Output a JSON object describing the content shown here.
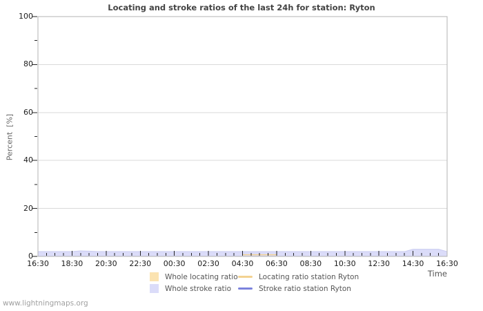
{
  "watermark": "www.lightningmaps.org",
  "chart_data": {
    "type": "area",
    "title": "Locating and stroke ratios of the last 24h for station: Ryton",
    "xlabel": "Time",
    "ylabel": "Percent  [%]",
    "ylim": [
      0,
      100
    ],
    "y_major_ticks": [
      0,
      20,
      40,
      60,
      80,
      100
    ],
    "y_tick_labels": [
      "0",
      "20",
      "40",
      "60",
      "80",
      "100"
    ],
    "y_minor_step": 10,
    "grid": "horizontal-major-only",
    "legend_position": "bottom",
    "x_start": "16:30",
    "x_step_minutes": 30,
    "x_points": 49,
    "x_major_labels": [
      "16:30",
      "18:30",
      "20:30",
      "22:30",
      "00:30",
      "02:30",
      "04:30",
      "06:30",
      "08:30",
      "10:30",
      "12:30",
      "14:30",
      "16:30"
    ],
    "x_minor_ticks_per_major": 4,
    "colors": {
      "axis_border": "#b3b3b3",
      "gridline": "#d9d9d9",
      "tick": "#222222",
      "background": "#ffffff"
    },
    "series": [
      {
        "name": "Whole locating ratio",
        "type": "area",
        "color": "#fbe3b1",
        "edge_color": "#f0d49a",
        "values": [
          0,
          0,
          0,
          0,
          0,
          0,
          0,
          0,
          0,
          0,
          0,
          0,
          0,
          0,
          0,
          0,
          0,
          0,
          0,
          0,
          0,
          0,
          0,
          0,
          0,
          0,
          0,
          0,
          0,
          0,
          0,
          0,
          0,
          0,
          0,
          0,
          0,
          0,
          0,
          0,
          0,
          0,
          0,
          0,
          0,
          0,
          0,
          0,
          0
        ]
      },
      {
        "name": "Whole stroke ratio",
        "type": "area",
        "color": "#dbdcf9",
        "edge_color": "#c9cbf0",
        "values": [
          2,
          2,
          2,
          2,
          2,
          2.3,
          2.2,
          2,
          2,
          2,
          2,
          2,
          2,
          2,
          2,
          2,
          2,
          2,
          2,
          2,
          2,
          2,
          2,
          2,
          2,
          2,
          2,
          2,
          2,
          2,
          2,
          2,
          2,
          2,
          2,
          2,
          2,
          2,
          2,
          2,
          2,
          2,
          2,
          2,
          3,
          3,
          3,
          3,
          2
        ]
      },
      {
        "name": "Locating ratio station Ryton",
        "type": "line",
        "color": "#f3d291",
        "values": [
          0,
          0,
          0,
          0,
          0,
          0,
          0,
          0,
          0,
          0,
          0,
          0,
          0,
          0,
          0,
          0,
          0,
          0,
          0,
          0,
          0,
          0,
          0,
          0,
          0.7,
          0.7,
          0.7,
          0.7,
          0.7,
          0,
          0,
          0,
          0,
          0,
          0,
          0,
          0,
          0,
          0,
          0,
          0,
          0,
          0,
          0,
          0,
          0,
          0,
          0,
          0
        ]
      },
      {
        "name": "Stroke ratio station Ryton",
        "type": "line",
        "color": "#7b82dd",
        "values": [
          0,
          0,
          0,
          0,
          0,
          0,
          0,
          0,
          0,
          0,
          0,
          0,
          0,
          0,
          0,
          0,
          0,
          0,
          0,
          0,
          0,
          0,
          0,
          0,
          0,
          0,
          0,
          0,
          0,
          0,
          0,
          0,
          0,
          0,
          0,
          0,
          0,
          0,
          0,
          0,
          0,
          0,
          0,
          0,
          0,
          0,
          0,
          0,
          0
        ]
      }
    ]
  }
}
